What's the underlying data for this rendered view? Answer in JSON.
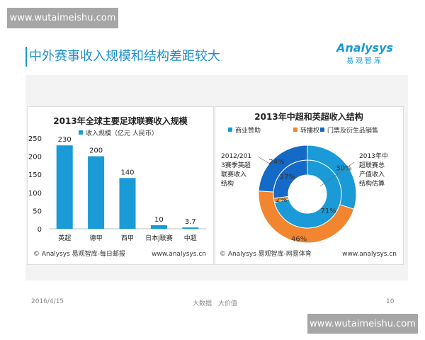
{
  "watermark": "www.wutaimeishu.com",
  "slide": {
    "title": "中外赛事收入规模和结构差距较大",
    "logo_text": "Analysys",
    "logo_sub": "易观智库"
  },
  "footer": {
    "date": "2016/4/15",
    "slogan": "大数据　大价值",
    "page": "10"
  },
  "chart_data": [
    {
      "type": "bar",
      "title": "2013年全球主要足球联赛收入规模",
      "categories": [
        "英超",
        "德甲",
        "西甲",
        "日本J联赛",
        "中超"
      ],
      "series": [
        {
          "name": "收入规模（亿元 人民币）",
          "values": [
            230,
            200,
            140,
            10,
            3.7
          ]
        }
      ],
      "data_labels": [
        "230",
        "200",
        "140",
        "10",
        "3.7"
      ],
      "ylim": [
        0,
        250
      ],
      "yticks": [
        0,
        50,
        100,
        150,
        200,
        250
      ],
      "grid": false,
      "legend": "top",
      "color": "#1a9ad6",
      "source": "© Analysys 易观智库-每日邮报",
      "url": "www.analysys.cn"
    },
    {
      "type": "pie",
      "subtype": "donut",
      "title": "2013年中超和英超收入结构",
      "categories": [
        "商业赞助",
        "转播权",
        "门票及衍生品销售"
      ],
      "colors": [
        "#1a9ad6",
        "#f28530",
        "#1569c7"
      ],
      "series": [
        {
          "name": "2013年中超联赛总产值收入结构估算",
          "ring": "inner",
          "values": [
            71,
            2,
            27
          ],
          "labels": [
            "71%",
            "2%",
            "27%"
          ]
        },
        {
          "name": "2012/2013赛季英超联赛收入结构",
          "ring": "outer",
          "values": [
            30,
            46,
            24
          ],
          "labels": [
            "30%",
            "46%",
            "24%"
          ]
        }
      ],
      "annotation_left": [
        "2012/201",
        "3赛季英超",
        "联赛收入",
        "结构"
      ],
      "annotation_right": [
        "2013年中",
        "超联赛总",
        "产值收入",
        "结构估算"
      ],
      "legend": "top",
      "source": "© Analysys 易观智库-网易体育",
      "url": "www.analysys.cn"
    }
  ]
}
